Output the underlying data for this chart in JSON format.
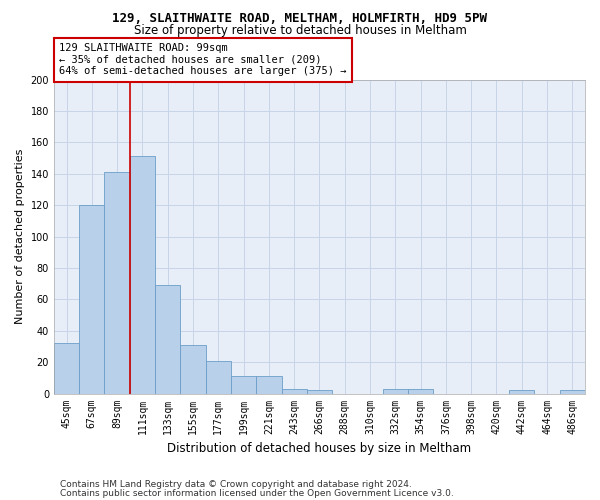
{
  "title1": "129, SLAITHWAITE ROAD, MELTHAM, HOLMFIRTH, HD9 5PW",
  "title2": "Size of property relative to detached houses in Meltham",
  "xlabel": "Distribution of detached houses by size in Meltham",
  "ylabel": "Number of detached properties",
  "categories": [
    "45sqm",
    "67sqm",
    "89sqm",
    "111sqm",
    "133sqm",
    "155sqm",
    "177sqm",
    "199sqm",
    "221sqm",
    "243sqm",
    "266sqm",
    "288sqm",
    "310sqm",
    "332sqm",
    "354sqm",
    "376sqm",
    "398sqm",
    "420sqm",
    "442sqm",
    "464sqm",
    "486sqm"
  ],
  "values": [
    32,
    120,
    141,
    151,
    69,
    31,
    21,
    11,
    11,
    3,
    2,
    0,
    0,
    3,
    3,
    0,
    0,
    0,
    2,
    0,
    2
  ],
  "bar_color": "#b8d0ea",
  "bar_edge_color": "#6b9ec8",
  "vline_color": "#cc0000",
  "annotation_line1": "129 SLAITHWAITE ROAD: 99sqm",
  "annotation_line2": "← 35% of detached houses are smaller (209)",
  "annotation_line3": "64% of semi-detached houses are larger (375) →",
  "annotation_box_color": "#ffffff",
  "annotation_box_edge": "#cc0000",
  "footer1": "Contains HM Land Registry data © Crown copyright and database right 2024.",
  "footer2": "Contains public sector information licensed under the Open Government Licence v3.0.",
  "ylim": [
    0,
    200
  ],
  "yticks": [
    0,
    20,
    40,
    60,
    80,
    100,
    120,
    140,
    160,
    180,
    200
  ],
  "grid_color": "#c8d4e8",
  "bg_color": "#e8eef8",
  "title1_fontsize": 9,
  "title2_fontsize": 8.5,
  "xlabel_fontsize": 8.5,
  "ylabel_fontsize": 8,
  "tick_fontsize": 7,
  "annotation_fontsize": 7.5,
  "footer_fontsize": 6.5
}
